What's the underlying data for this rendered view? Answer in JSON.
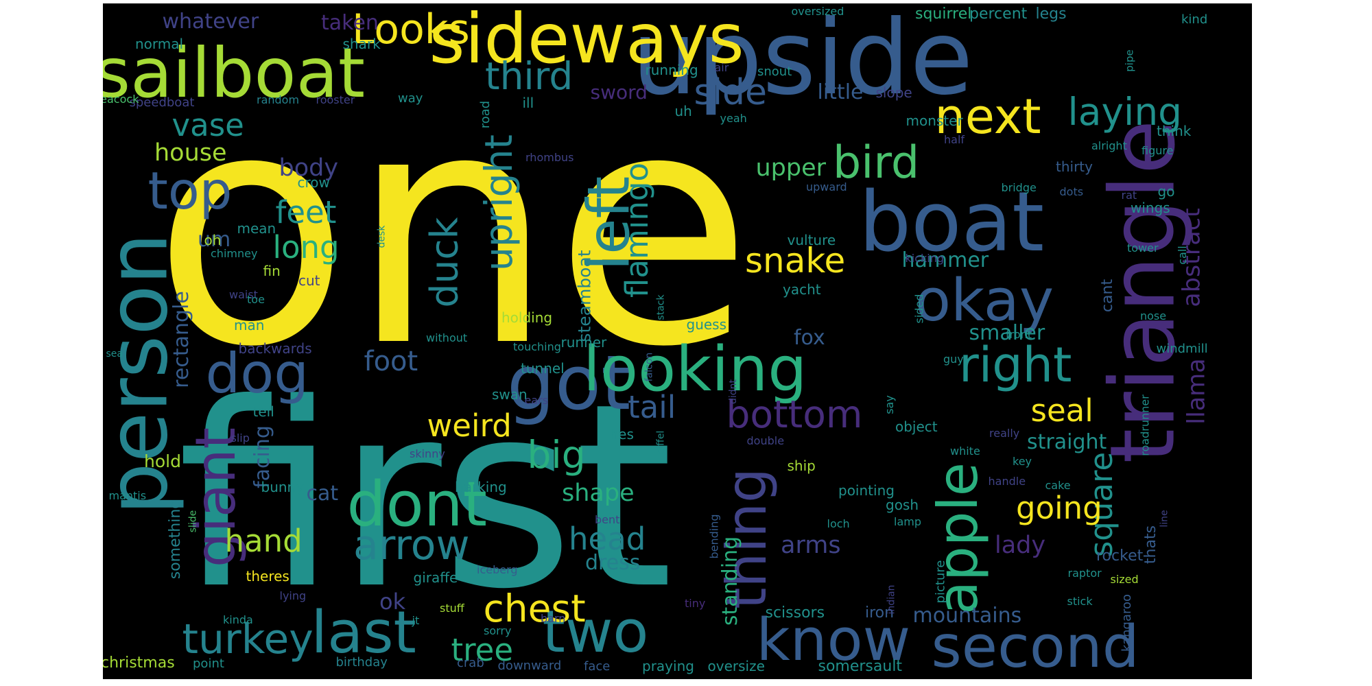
{
  "word_cloud": {
    "background": "#000000",
    "palette": {
      "yellow": "#f5e51f",
      "lime": "#a5db36",
      "green": "#4ac16d",
      "mint": "#2ab07f",
      "teal": "#21918c",
      "cyan": "#25838e",
      "blue": "#365c8d",
      "indigo": "#404387",
      "purple": "#472d7b"
    },
    "words": [
      {
        "text": "one",
        "color": "yellow"
      },
      {
        "text": "first",
        "color": "teal"
      },
      {
        "text": "upside",
        "color": "blue"
      },
      {
        "text": "sideways",
        "color": "yellow"
      },
      {
        "text": "sailboat",
        "color": "lime"
      },
      {
        "text": "person",
        "color": "cyan"
      },
      {
        "text": "triangle",
        "color": "purple"
      },
      {
        "text": "boat",
        "color": "blue"
      },
      {
        "text": "got",
        "color": "blue"
      },
      {
        "text": "looking",
        "color": "mint"
      },
      {
        "text": "dont",
        "color": "mint"
      },
      {
        "text": "giant",
        "color": "purple"
      },
      {
        "text": "last",
        "color": "cyan"
      },
      {
        "text": "two",
        "color": "cyan"
      },
      {
        "text": "know",
        "color": "blue"
      },
      {
        "text": "second",
        "color": "blue"
      },
      {
        "text": "okay",
        "color": "blue"
      },
      {
        "text": "apple",
        "color": "mint"
      },
      {
        "text": "thing",
        "color": "indigo"
      },
      {
        "text": "left",
        "color": "cyan"
      },
      {
        "text": "next",
        "color": "yellow"
      },
      {
        "text": "dog",
        "color": "blue"
      },
      {
        "text": "top",
        "color": "blue"
      },
      {
        "text": "arrow",
        "color": "cyan"
      },
      {
        "text": "right",
        "color": "teal"
      },
      {
        "text": "bird",
        "color": "green"
      },
      {
        "text": "Looks",
        "color": "yellow"
      },
      {
        "text": "turkey",
        "color": "cyan"
      },
      {
        "text": "third",
        "color": "cyan"
      },
      {
        "text": "laying",
        "color": "teal"
      },
      {
        "text": "bottom",
        "color": "purple"
      },
      {
        "text": "side",
        "color": "blue"
      },
      {
        "text": "abstract",
        "color": "purple"
      },
      {
        "text": "upright",
        "color": "cyan"
      },
      {
        "text": "flamingo",
        "color": "teal"
      },
      {
        "text": "duck",
        "color": "cyan"
      },
      {
        "text": "weird",
        "color": "yellow"
      },
      {
        "text": "big",
        "color": "mint"
      },
      {
        "text": "chest",
        "color": "yellow"
      },
      {
        "text": "square",
        "color": "teal"
      },
      {
        "text": "snake",
        "color": "yellow"
      },
      {
        "text": "long",
        "color": "mint"
      },
      {
        "text": "feet",
        "color": "teal"
      },
      {
        "text": "tail",
        "color": "blue"
      },
      {
        "text": "seal",
        "color": "yellow"
      },
      {
        "text": "going",
        "color": "yellow"
      },
      {
        "text": "head",
        "color": "cyan"
      },
      {
        "text": "hand",
        "color": "lime"
      },
      {
        "text": "vase",
        "color": "teal"
      },
      {
        "text": "tree",
        "color": "mint"
      },
      {
        "text": "llama",
        "color": "purple"
      },
      {
        "text": "standing",
        "color": "mint"
      },
      {
        "text": "upper",
        "color": "green"
      },
      {
        "text": "steamboat",
        "color": "cyan"
      },
      {
        "text": "mountains",
        "color": "blue"
      },
      {
        "text": "shape",
        "color": "mint"
      },
      {
        "text": "lady",
        "color": "purple"
      },
      {
        "text": "foot",
        "color": "blue"
      },
      {
        "text": "house",
        "color": "lime"
      },
      {
        "text": "body",
        "color": "indigo"
      },
      {
        "text": "rectangle",
        "color": "blue"
      },
      {
        "text": "facing",
        "color": "blue"
      },
      {
        "text": "hammer",
        "color": "teal"
      },
      {
        "text": "arms",
        "color": "indigo"
      },
      {
        "text": "little",
        "color": "blue"
      },
      {
        "text": "um",
        "color": "blue"
      },
      {
        "text": "whatever",
        "color": "indigo"
      },
      {
        "text": "taken",
        "color": "purple"
      },
      {
        "text": "sword",
        "color": "purple"
      },
      {
        "text": "ok",
        "color": "indigo"
      },
      {
        "text": "cat",
        "color": "blue"
      },
      {
        "text": "fox",
        "color": "blue"
      },
      {
        "text": "smaller",
        "color": "teal"
      },
      {
        "text": "straight",
        "color": "teal"
      },
      {
        "text": "dress",
        "color": "cyan"
      },
      {
        "text": "hold",
        "color": "lime"
      },
      {
        "text": "rocket",
        "color": "blue"
      },
      {
        "text": "thats",
        "color": "blue"
      },
      {
        "text": "cant",
        "color": "blue"
      },
      {
        "text": "scissors",
        "color": "teal"
      },
      {
        "text": "iron",
        "color": "blue"
      },
      {
        "text": "something",
        "color": "cyan"
      },
      {
        "text": "kangaroo",
        "color": "blue"
      },
      {
        "text": "christmas",
        "color": "lime"
      },
      {
        "text": "point",
        "color": "teal"
      },
      {
        "text": "birthday",
        "color": "cyan"
      },
      {
        "text": "crab",
        "color": "blue"
      },
      {
        "text": "downward",
        "color": "blue"
      },
      {
        "text": "face",
        "color": "blue"
      },
      {
        "text": "praying",
        "color": "teal"
      },
      {
        "text": "oversize",
        "color": "teal"
      },
      {
        "text": "somersault",
        "color": "teal"
      },
      {
        "text": "normal",
        "color": "teal"
      },
      {
        "text": "shark",
        "color": "teal"
      },
      {
        "text": "speedboat",
        "color": "indigo"
      },
      {
        "text": "peacock",
        "color": "green"
      },
      {
        "text": "random",
        "color": "cyan"
      },
      {
        "text": "rooster",
        "color": "indigo"
      },
      {
        "text": "way",
        "color": "teal"
      },
      {
        "text": "ill",
        "color": "teal"
      },
      {
        "text": "running",
        "color": "teal"
      },
      {
        "text": "air",
        "color": "indigo"
      },
      {
        "text": "snout",
        "color": "teal"
      },
      {
        "text": "oversized",
        "color": "teal"
      },
      {
        "text": "squirrel",
        "color": "mint"
      },
      {
        "text": "percent",
        "color": "teal"
      },
      {
        "text": "legs",
        "color": "cyan"
      },
      {
        "text": "kind",
        "color": "teal"
      },
      {
        "text": "pipe",
        "color": "teal"
      },
      {
        "text": "road",
        "color": "teal"
      },
      {
        "text": "uh",
        "color": "teal"
      },
      {
        "text": "yeah",
        "color": "teal"
      },
      {
        "text": "slope",
        "color": "indigo"
      },
      {
        "text": "monster",
        "color": "teal"
      },
      {
        "text": "half",
        "color": "indigo"
      },
      {
        "text": "alright",
        "color": "teal"
      },
      {
        "text": "think",
        "color": "teal"
      },
      {
        "text": "figure",
        "color": "teal"
      },
      {
        "text": "thirty",
        "color": "blue"
      },
      {
        "text": "rat",
        "color": "indigo"
      },
      {
        "text": "dots",
        "color": "blue"
      },
      {
        "text": "bridge",
        "color": "teal"
      },
      {
        "text": "go",
        "color": "teal"
      },
      {
        "text": "wings",
        "color": "teal"
      },
      {
        "text": "rhombus",
        "color": "indigo"
      },
      {
        "text": "crow",
        "color": "teal"
      },
      {
        "text": "upward",
        "color": "blue"
      },
      {
        "text": "mean",
        "color": "teal"
      },
      {
        "text": "oh",
        "color": "lime"
      },
      {
        "text": "desk",
        "color": "teal"
      },
      {
        "text": "chimney",
        "color": "teal"
      },
      {
        "text": "fin",
        "color": "lime"
      },
      {
        "text": "cut",
        "color": "indigo"
      },
      {
        "text": "waist",
        "color": "indigo"
      },
      {
        "text": "toe",
        "color": "teal"
      },
      {
        "text": "vulture",
        "color": "teal"
      },
      {
        "text": "tower",
        "color": "teal"
      },
      {
        "text": "call",
        "color": "teal"
      },
      {
        "text": "kicking",
        "color": "indigo"
      },
      {
        "text": "yacht",
        "color": "teal"
      },
      {
        "text": "stack",
        "color": "teal"
      },
      {
        "text": "sided",
        "color": "teal"
      },
      {
        "text": "nose",
        "color": "teal"
      },
      {
        "text": "man",
        "color": "teal"
      },
      {
        "text": "holding",
        "color": "lime"
      },
      {
        "text": "guess",
        "color": "teal"
      },
      {
        "text": "backwards",
        "color": "indigo"
      },
      {
        "text": "without",
        "color": "teal"
      },
      {
        "text": "touching",
        "color": "teal"
      },
      {
        "text": "runner",
        "color": "teal"
      },
      {
        "text": "front",
        "color": "teal"
      },
      {
        "text": "windmill",
        "color": "teal"
      },
      {
        "text": "sea",
        "color": "teal"
      },
      {
        "text": "falcon",
        "color": "blue"
      },
      {
        "text": "tunnel",
        "color": "teal"
      },
      {
        "text": "guy",
        "color": "teal"
      },
      {
        "text": "tell",
        "color": "teal"
      },
      {
        "text": "swan",
        "color": "teal"
      },
      {
        "text": "ears",
        "color": "indigo"
      },
      {
        "text": "didnt",
        "color": "indigo"
      },
      {
        "text": "say",
        "color": "teal"
      },
      {
        "text": "slip",
        "color": "indigo"
      },
      {
        "text": "hes",
        "color": "teal"
      },
      {
        "text": "object",
        "color": "teal"
      },
      {
        "text": "really",
        "color": "indigo"
      },
      {
        "text": "eiffel",
        "color": "teal"
      },
      {
        "text": "double",
        "color": "indigo"
      },
      {
        "text": "white",
        "color": "teal"
      },
      {
        "text": "roadrunner",
        "color": "teal"
      },
      {
        "text": "skinny",
        "color": "indigo"
      },
      {
        "text": "ship",
        "color": "lime"
      },
      {
        "text": "key",
        "color": "teal"
      },
      {
        "text": "bunny",
        "color": "teal"
      },
      {
        "text": "barking",
        "color": "teal"
      },
      {
        "text": "pointing",
        "color": "teal"
      },
      {
        "text": "handle",
        "color": "indigo"
      },
      {
        "text": "cake",
        "color": "teal"
      },
      {
        "text": "mantis",
        "color": "teal"
      },
      {
        "text": "slide",
        "color": "green"
      },
      {
        "text": "bent",
        "color": "indigo"
      },
      {
        "text": "bending",
        "color": "blue"
      },
      {
        "text": "gosh",
        "color": "teal"
      },
      {
        "text": "loch",
        "color": "teal"
      },
      {
        "text": "lamp",
        "color": "teal"
      },
      {
        "text": "picture",
        "color": "teal"
      },
      {
        "text": "line",
        "color": "indigo"
      },
      {
        "text": "theres",
        "color": "yellow"
      },
      {
        "text": "giraffe",
        "color": "teal"
      },
      {
        "text": "iceberg",
        "color": "blue"
      },
      {
        "text": "raptor",
        "color": "teal"
      },
      {
        "text": "lying",
        "color": "indigo"
      },
      {
        "text": "indian",
        "color": "indigo"
      },
      {
        "text": "sized",
        "color": "lime"
      },
      {
        "text": "stuff",
        "color": "lime"
      },
      {
        "text": "tiny",
        "color": "purple"
      },
      {
        "text": "stick",
        "color": "teal"
      },
      {
        "text": "kinda",
        "color": "teal"
      },
      {
        "text": "jt",
        "color": "teal"
      },
      {
        "text": "barn",
        "color": "indigo"
      },
      {
        "text": "sorry",
        "color": "teal"
      }
    ]
  }
}
